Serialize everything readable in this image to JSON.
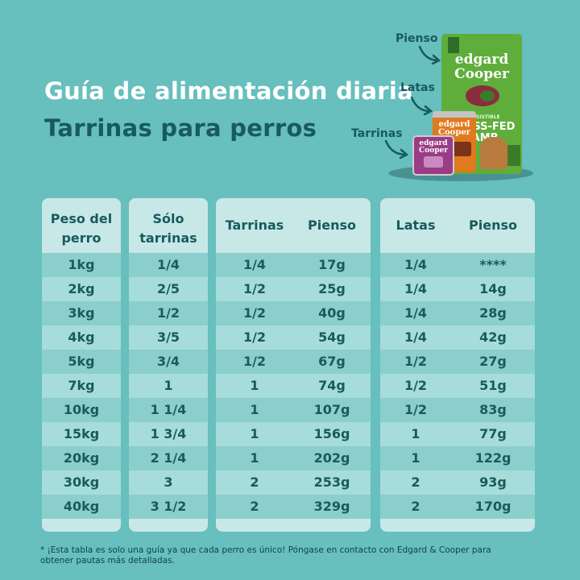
{
  "title_line1": "Guía de alimentación diaria",
  "title_line2": "Tarrinas para perros",
  "product_labels": {
    "pienso": "Pienso",
    "latas": "Latas",
    "tarrinas": "Tarrinas"
  },
  "product_text": {
    "bag_brand_1": "edgard",
    "bag_brand_2": "Cooper",
    "bag_sub_1": "IRRESISTIBLE",
    "bag_sub_2": "GRASS-FED",
    "bag_sub_3": "LAMB",
    "can_brand": "edgard Cooper",
    "tray_brand": "edgard Cooper"
  },
  "headers": {
    "weight": "Peso del perro",
    "only_tubs": "Sólo tarrinas",
    "tubs": "Tarrinas",
    "kibble1": "Pienso",
    "cans": "Latas",
    "kibble2": "Pienso"
  },
  "rows": [
    {
      "weight": "1kg",
      "only": "1/4",
      "tubs": "1/4",
      "kibble1": "17g",
      "cans": "1/4",
      "kibble2": "****"
    },
    {
      "weight": "2kg",
      "only": "2/5",
      "tubs": "1/2",
      "kibble1": "25g",
      "cans": "1/4",
      "kibble2": "14g"
    },
    {
      "weight": "3kg",
      "only": "1/2",
      "tubs": "1/2",
      "kibble1": "40g",
      "cans": "1/4",
      "kibble2": "28g"
    },
    {
      "weight": "4kg",
      "only": "3/5",
      "tubs": "1/2",
      "kibble1": "54g",
      "cans": "1/4",
      "kibble2": "42g"
    },
    {
      "weight": "5kg",
      "only": "3/4",
      "tubs": "1/2",
      "kibble1": "67g",
      "cans": "1/2",
      "kibble2": "27g"
    },
    {
      "weight": "7kg",
      "only": "1",
      "tubs": "1",
      "kibble1": "74g",
      "cans": "1/2",
      "kibble2": "51g"
    },
    {
      "weight": "10kg",
      "only": "1 1/4",
      "tubs": "1",
      "kibble1": "107g",
      "cans": "1/2",
      "kibble2": "83g"
    },
    {
      "weight": "15kg",
      "only": "1 3/4",
      "tubs": "1",
      "kibble1": "156g",
      "cans": "1",
      "kibble2": "77g"
    },
    {
      "weight": "20kg",
      "only": "2 1/4",
      "tubs": "1",
      "kibble1": "202g",
      "cans": "1",
      "kibble2": "122g"
    },
    {
      "weight": "30kg",
      "only": "3",
      "tubs": "2",
      "kibble1": "253g",
      "cans": "2",
      "kibble2": "93g"
    },
    {
      "weight": "40kg",
      "only": "3 1/2",
      "tubs": "2",
      "kibble1": "329g",
      "cans": "2",
      "kibble2": "170g"
    }
  ],
  "footnote": "* ¡Esta tabla es solo una guía ya que cada perro es único! Póngase en contacto con Edgard & Cooper para obtener pautas más detalladas.",
  "colors": {
    "background": "#67bfbe",
    "panel": "#c7e8e6",
    "row_dark": "#8bcfcd",
    "row_light": "#a6dcda",
    "text_dark": "#185a5e",
    "bag_green": "#5fae3c",
    "can_orange": "#e07a1e",
    "tray_purple": "#9a3c86"
  }
}
